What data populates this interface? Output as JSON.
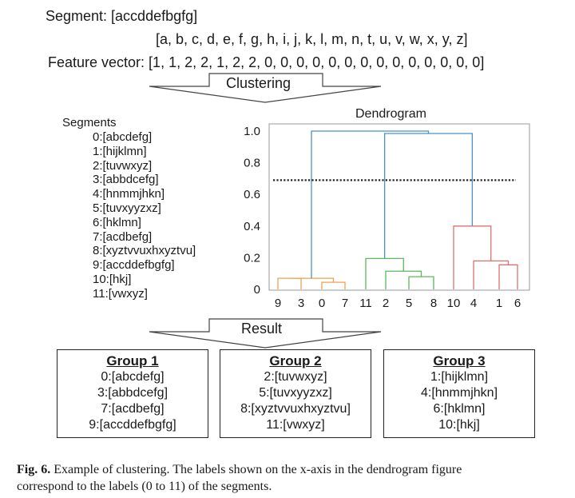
{
  "header": {
    "segment_label": "Segment: [accddefbgfg]",
    "alphabet": "[a, b, c, d, e,  f, g, h, i, j, k, l, m, n, t, u, v, w, x, y, z]",
    "feature_vector": "Feature vector: [1, 1, 2, 2, 1, 2, 2, 0, 0, 0, 0, 0, 0, 0, 0, 0, 0, 0, 0, 0, 0]"
  },
  "arrows": {
    "clustering": "Clustering",
    "result": "Result"
  },
  "segments": {
    "title": "Segments",
    "items": [
      "0:[abcdefg]",
      "1:[hijklmn]",
      "2:[tuvwxyz]",
      "3:[abbdcefg]",
      "4:[hnmmjhkn]",
      "5:[tuvxyyzxz]",
      "6:[hklmn]",
      "7:[acdbefg]",
      "8:[xyztvvuxhxyztvu]",
      "9:[accddefbgfg]",
      "10:[hkj]",
      "11:[vwxyz]"
    ]
  },
  "chart_data": {
    "type": "dendrogram",
    "title": "Dendrogram",
    "y_ticks": [
      "1.0",
      "0.8",
      "0.6",
      "0.4",
      "0.2",
      "0"
    ],
    "ylim": [
      0,
      1.0
    ],
    "leaf_labels": [
      "9",
      "3",
      "0",
      "7",
      "11",
      "2",
      "5",
      "8",
      "10",
      "4",
      "1",
      "6"
    ],
    "threshold": 0.69,
    "colors": {
      "cluster1": "#f0a050",
      "cluster2": "#5cb85c",
      "cluster3": "#e07070",
      "root": "#4a90c8",
      "threshold": "#222222",
      "frame": "#999999"
    },
    "merges": [
      {
        "color": "cluster1",
        "a": "9",
        "b": "3",
        "height": 0.07
      },
      {
        "color": "cluster1",
        "a": "0",
        "b": "7",
        "height": 0.045
      },
      {
        "color": "cluster1",
        "a": "9+3",
        "b": "0+7",
        "height": 0.07
      },
      {
        "color": "cluster2",
        "a": "11",
        "b": "2",
        "height": 0.195
      },
      {
        "color": "cluster2",
        "a": "5",
        "b": "8",
        "height": 0.08
      },
      {
        "color": "cluster2",
        "a": "2",
        "b": "5+8",
        "height": 0.115
      },
      {
        "color": "cluster3",
        "a": "10",
        "b": "4",
        "height": 0.4
      },
      {
        "color": "cluster3",
        "a": "4",
        "b": "1+6",
        "height": 0.18
      },
      {
        "color": "cluster3",
        "a": "1",
        "b": "6",
        "height": 0.155
      },
      {
        "color": "root",
        "a": "cluster2",
        "b": "cluster3",
        "height": 0.985
      },
      {
        "color": "root",
        "a": "cluster1",
        "b": "cluster2+3",
        "height": 1.0
      }
    ]
  },
  "groups": [
    {
      "title": "Group 1",
      "items": [
        "0:[abcdefg]",
        "3:[abbdcefg]",
        "7:[acdbefg]",
        "9:[accddefbgfg]"
      ]
    },
    {
      "title": "Group 2",
      "items": [
        "2:[tuvwxyz]",
        "5:[tuvxyyzxz]",
        "8:[xyztvvuxhxyztvu]",
        "11:[vwxyz]"
      ]
    },
    {
      "title": "Group 3",
      "items": [
        "1:[hijklmn]",
        "4:[hnmmjhkn]",
        "6:[hklmn]",
        "10:[hkj]"
      ]
    }
  ],
  "caption": {
    "label": "Fig. 6.",
    "line1": " Example of clustering. The labels shown on the x-axis in the dendrogram figure",
    "line2": "correspond to the labels (0 to 11) of the segments."
  }
}
